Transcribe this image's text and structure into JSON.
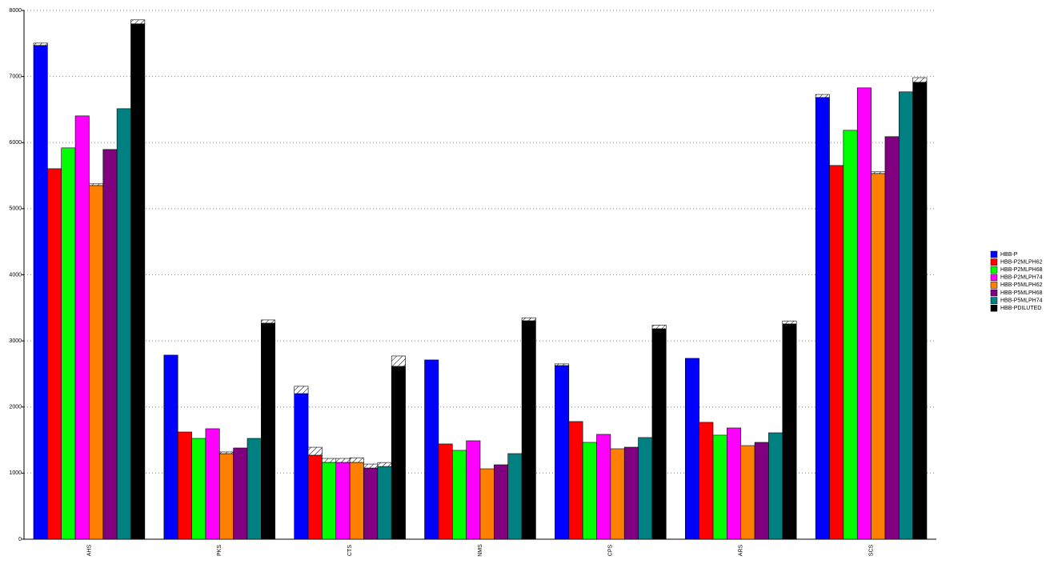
{
  "chart_data": {
    "type": "bar",
    "categories": [
      "AHS",
      "PKS",
      "CTS",
      "NMS",
      "CPS",
      "ARS",
      "SCS"
    ],
    "series": [
      {
        "name": "HBB-P",
        "color": "#0000ff",
        "values": [
          7470,
          2785,
          2203,
          2712,
          2627,
          2736,
          6683
        ],
        "errors": [
          35,
          null,
          110,
          null,
          25,
          null,
          45
        ]
      },
      {
        "name": "HBB-P2MLPH62",
        "color": "#ff0000",
        "values": [
          5605,
          1622,
          1271,
          1441,
          1780,
          1768,
          5654
        ],
        "errors": [
          null,
          null,
          120,
          null,
          null,
          null,
          null
        ]
      },
      {
        "name": "HBB-P2MLPH68",
        "color": "#00ff00",
        "values": [
          5920,
          1525,
          1162,
          1344,
          1465,
          1574,
          6186
        ],
        "errors": [
          null,
          null,
          60,
          null,
          null,
          null,
          null
        ]
      },
      {
        "name": "HBB-P2MLPH74",
        "color": "#ff00ff",
        "values": [
          6404,
          1671,
          1162,
          1489,
          1586,
          1683,
          6828
        ],
        "errors": [
          null,
          null,
          60,
          null,
          null,
          null,
          null
        ]
      },
      {
        "name": "HBB-P5MLPH62",
        "color": "#ff8000",
        "values": [
          5351,
          1295,
          1162,
          1065,
          1368,
          1416,
          5533
        ],
        "errors": [
          25,
          25,
          70,
          null,
          null,
          null,
          25
        ]
      },
      {
        "name": "HBB-P5MLPH68",
        "color": "#800080",
        "values": [
          5896,
          1380,
          1077,
          1126,
          1392,
          1465,
          6090
        ],
        "errors": [
          null,
          null,
          60,
          null,
          null,
          null,
          null
        ]
      },
      {
        "name": "HBB-P5MLPH74",
        "color": "#008080",
        "values": [
          6513,
          1525,
          1100,
          1295,
          1538,
          1610,
          6768
        ],
        "errors": [
          null,
          null,
          60,
          null,
          null,
          null,
          null
        ]
      },
      {
        "name": "HBB-PDILUTED",
        "color": "#000000",
        "values": [
          7797,
          3269,
          2615,
          3305,
          3184,
          3257,
          6913
        ],
        "errors": [
          60,
          48,
          157,
          45,
          55,
          45,
          70
        ]
      }
    ],
    "ylim": [
      0,
      8000
    ],
    "yticks": [
      0,
      1000,
      2000,
      3000,
      4000,
      5000,
      6000,
      7000,
      8000
    ],
    "grid": true,
    "legend": "right"
  }
}
